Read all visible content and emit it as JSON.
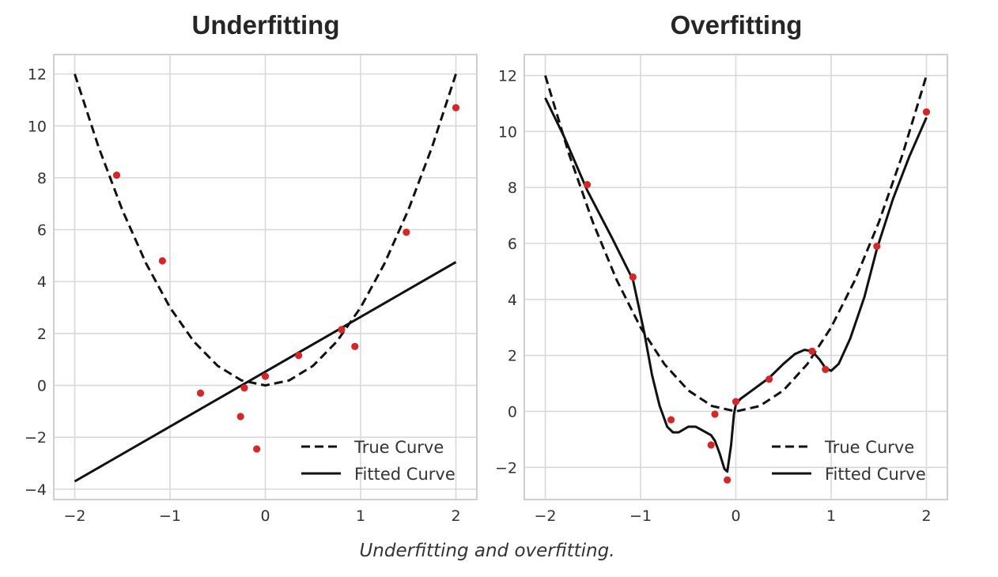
{
  "caption": "Underfitting and overfitting.",
  "chart_data": [
    {
      "type": "line",
      "title": "Underfitting",
      "xlabel": "",
      "ylabel": "",
      "xlim": [
        -2.22,
        2.22
      ],
      "ylim": [
        -4.4,
        12.75
      ],
      "xticks": [
        -2,
        -1,
        0,
        1,
        2
      ],
      "xtick_labels": [
        "−2",
        "−1",
        "0",
        "1",
        "2"
      ],
      "yticks": [
        -4,
        -2,
        0,
        2,
        4,
        6,
        8,
        10,
        12
      ],
      "ytick_labels": [
        "−4",
        "−2",
        "0",
        "2",
        "4",
        "6",
        "8",
        "10",
        "12"
      ],
      "grid": true,
      "legend_position": "lower-right",
      "colors": {
        "points": "#d62728",
        "lines": "#111111",
        "grid": "#d9d9d9"
      },
      "series": [
        {
          "name": "True Curve",
          "style": "dashed",
          "x": [
            -2.0,
            -1.75,
            -1.5,
            -1.25,
            -1.0,
            -0.75,
            -0.5,
            -0.25,
            0.0,
            0.25,
            0.5,
            0.75,
            1.0,
            1.25,
            1.5,
            1.75,
            2.0
          ],
          "y": [
            12.0,
            9.19,
            6.75,
            4.69,
            3.0,
            1.69,
            0.75,
            0.19,
            0.0,
            0.19,
            0.75,
            1.69,
            3.0,
            4.69,
            6.75,
            9.19,
            12.0
          ]
        },
        {
          "name": "Fitted Curve",
          "style": "solid",
          "x": [
            -2.0,
            2.0
          ],
          "y": [
            -3.7,
            4.75
          ]
        },
        {
          "type": "scatter",
          "x": [
            -1.56,
            -1.08,
            -0.68,
            -0.26,
            -0.22,
            -0.09,
            0.0,
            0.35,
            0.8,
            0.94,
            1.48,
            2.0
          ],
          "y": [
            8.1,
            4.8,
            -0.3,
            -1.2,
            -0.1,
            -2.45,
            0.35,
            1.15,
            2.15,
            1.5,
            5.9,
            10.7
          ]
        }
      ]
    },
    {
      "type": "line",
      "title": "Overfitting",
      "xlabel": "",
      "ylabel": "",
      "xlim": [
        -2.22,
        2.22
      ],
      "ylim": [
        -3.15,
        12.75
      ],
      "xticks": [
        -2,
        -1,
        0,
        1,
        2
      ],
      "xtick_labels": [
        "−2",
        "−1",
        "0",
        "1",
        "2"
      ],
      "yticks": [
        -2,
        0,
        2,
        4,
        6,
        8,
        10,
        12
      ],
      "ytick_labels": [
        "−2",
        "0",
        "2",
        "4",
        "6",
        "8",
        "10",
        "12"
      ],
      "grid": true,
      "legend_position": "lower-right",
      "colors": {
        "points": "#d62728",
        "lines": "#111111",
        "grid": "#d9d9d9"
      },
      "series": [
        {
          "name": "True Curve",
          "style": "dashed",
          "x": [
            -2.0,
            -1.75,
            -1.5,
            -1.25,
            -1.0,
            -0.75,
            -0.5,
            -0.25,
            0.0,
            0.25,
            0.5,
            0.75,
            1.0,
            1.25,
            1.5,
            1.75,
            2.0
          ],
          "y": [
            12.0,
            9.19,
            6.75,
            4.69,
            3.0,
            1.69,
            0.75,
            0.19,
            0.0,
            0.19,
            0.75,
            1.69,
            3.0,
            4.69,
            6.75,
            9.19,
            12.0
          ]
        },
        {
          "name": "Fitted Curve",
          "style": "solid",
          "x": [
            -2.0,
            -1.8,
            -1.56,
            -1.3,
            -1.08,
            -0.96,
            -0.88,
            -0.8,
            -0.72,
            -0.66,
            -0.6,
            -0.5,
            -0.42,
            -0.34,
            -0.26,
            -0.22,
            -0.17,
            -0.12,
            -0.09,
            -0.05,
            -0.02,
            0.0,
            0.05,
            0.15,
            0.35,
            0.5,
            0.62,
            0.72,
            0.8,
            0.88,
            0.94,
            1.0,
            1.08,
            1.2,
            1.35,
            1.48,
            1.65,
            1.82,
            2.0
          ],
          "y": [
            11.2,
            9.8,
            7.9,
            6.2,
            4.7,
            2.8,
            1.3,
            0.2,
            -0.55,
            -0.75,
            -0.75,
            -0.55,
            -0.55,
            -0.7,
            -0.85,
            -1.05,
            -1.5,
            -2.05,
            -2.15,
            -1.2,
            -0.1,
            0.25,
            0.45,
            0.7,
            1.2,
            1.7,
            2.05,
            2.2,
            2.15,
            1.85,
            1.55,
            1.45,
            1.7,
            2.6,
            4.1,
            5.8,
            7.6,
            9.1,
            10.5
          ]
        },
        {
          "type": "scatter",
          "x": [
            -1.56,
            -1.08,
            -0.68,
            -0.26,
            -0.22,
            -0.09,
            0.0,
            0.35,
            0.8,
            0.94,
            1.48,
            2.0
          ],
          "y": [
            8.1,
            4.8,
            -0.3,
            -1.2,
            -0.1,
            -2.45,
            0.35,
            1.15,
            2.15,
            1.5,
            5.9,
            10.7
          ]
        }
      ]
    }
  ]
}
